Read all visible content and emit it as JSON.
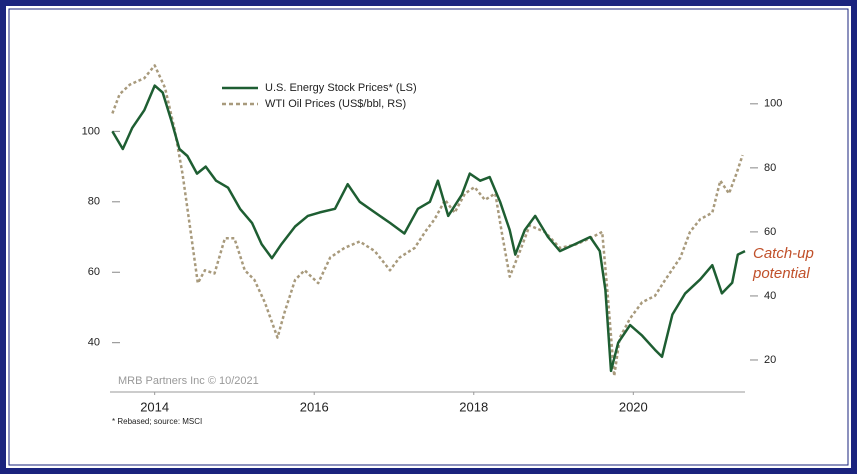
{
  "chart_data": {
    "type": "line",
    "series": [
      {
        "name": "U.S. Energy Stock Prices* (LS)",
        "color": "#1e5e32",
        "axis": "y",
        "x": [
          2013.97,
          2014.1,
          2014.22,
          2014.37,
          2014.5,
          2014.6,
          2014.71,
          2014.81,
          2014.91,
          2015.03,
          2015.14,
          2015.27,
          2015.42,
          2015.57,
          2015.72,
          2015.84,
          2015.97,
          2016.09,
          2016.26,
          2016.42,
          2016.57,
          2016.76,
          2016.92,
          2017.07,
          2017.26,
          2017.45,
          2017.63,
          2017.8,
          2017.95,
          2018.05,
          2018.18,
          2018.35,
          2018.45,
          2018.58,
          2018.7,
          2018.83,
          2018.95,
          2019.02,
          2019.14,
          2019.27,
          2019.43,
          2019.58,
          2019.77,
          2019.96,
          2020.08,
          2020.15,
          2020.22,
          2020.31,
          2020.46,
          2020.61,
          2020.77,
          2020.86,
          2020.99,
          2021.15,
          2021.34,
          2021.49,
          2021.61,
          2021.74,
          2021.81,
          2021.9
        ],
        "values": [
          100,
          95,
          101,
          106,
          113,
          111,
          103,
          95,
          93,
          88,
          90,
          86,
          84,
          78,
          74,
          68,
          64,
          68,
          73,
          76,
          77,
          78,
          85,
          80,
          77,
          74,
          71,
          78,
          80,
          86,
          76,
          82,
          88,
          86,
          87,
          80,
          72,
          65,
          72,
          76,
          70,
          66,
          68,
          70,
          66,
          55,
          32,
          40,
          45,
          42,
          38,
          36,
          48,
          54,
          58,
          62,
          54,
          57,
          65,
          66
        ]
      },
      {
        "name": "WTI Oil Prices (US$/bbl, RS)",
        "color": "#a89a7c",
        "axis": "y2",
        "dash": true,
        "x": [
          2013.97,
          2014.06,
          2014.19,
          2014.37,
          2014.5,
          2014.63,
          2014.75,
          2014.85,
          2014.94,
          2015.04,
          2015.13,
          2015.25,
          2015.38,
          2015.5,
          2015.63,
          2015.75,
          2015.88,
          2016.04,
          2016.13,
          2016.26,
          2016.38,
          2016.55,
          2016.7,
          2016.88,
          2017.07,
          2017.26,
          2017.45,
          2017.57,
          2017.76,
          2017.89,
          2018.01,
          2018.14,
          2018.26,
          2018.39,
          2018.51,
          2018.64,
          2018.77,
          2018.85,
          2018.95,
          2019.08,
          2019.2,
          2019.39,
          2019.58,
          2019.77,
          2019.96,
          2020.11,
          2020.18,
          2020.26,
          2020.33,
          2020.46,
          2020.61,
          2020.77,
          2020.9,
          2021.09,
          2021.21,
          2021.34,
          2021.49,
          2021.59,
          2021.7,
          2021.79,
          2021.87
        ],
        "values": [
          97,
          103,
          106,
          108,
          112,
          105,
          92,
          78,
          62,
          44,
          48,
          47,
          58,
          58,
          48,
          45,
          38,
          27,
          35,
          45,
          48,
          44,
          52,
          55,
          57,
          54,
          48,
          52,
          55,
          60,
          64,
          70,
          66,
          72,
          74,
          70,
          72,
          60,
          46,
          54,
          62,
          60,
          55,
          56,
          58,
          60,
          40,
          15,
          27,
          33,
          38,
          40,
          45,
          52,
          60,
          64,
          66,
          76,
          72,
          78,
          84
        ]
      }
    ],
    "xlim": [
      2013.94,
      2021.9
    ],
    "xticks": [
      {
        "value": 2014.5,
        "label": "2014"
      },
      {
        "value": 2016.5,
        "label": "2016"
      },
      {
        "value": 2018.5,
        "label": "2018"
      },
      {
        "value": 2020.5,
        "label": "2020"
      }
    ],
    "ylim": [
      26,
      116
    ],
    "yticks": [
      40,
      60,
      80,
      100
    ],
    "y2lim": [
      10,
      109
    ],
    "y2ticks": [
      20,
      40,
      60,
      80,
      100
    ],
    "annotation": [
      "Catch-up",
      "potential"
    ],
    "credit": "MRB Partners Inc © 10/2021",
    "footnote": "* Rebased; source: MSCI"
  }
}
